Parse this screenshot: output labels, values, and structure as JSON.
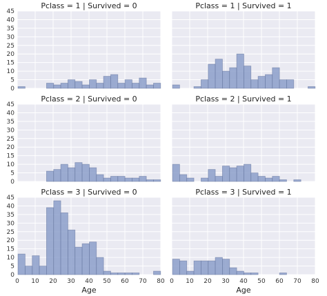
{
  "colors": {
    "panel_background": "#eaeaf2",
    "bar_fill": "#8c9fca",
    "grid": "#ffffff"
  },
  "chart_data": {
    "type": "bar",
    "layout": "facet-grid-3x2",
    "grid": true,
    "xlabel": "Age",
    "ylim": [
      0,
      45
    ],
    "xlim": [
      0,
      80
    ],
    "yticks": [
      "0",
      "5",
      "10",
      "15",
      "20",
      "25",
      "30",
      "35",
      "40",
      "45"
    ],
    "xticks": [
      "0",
      "10",
      "20",
      "30",
      "40",
      "50",
      "60",
      "70",
      "80"
    ],
    "bin_edges": [
      0.42,
      4.38,
      8.36,
      12.33,
      16.31,
      20.29,
      24.26,
      28.24,
      32.21,
      36.19,
      40.17,
      44.14,
      48.12,
      52.09,
      56.07,
      60.05,
      64.02,
      68.0,
      71.98,
      75.95,
      79.93
    ],
    "panels": [
      {
        "title": "Pclass = 1 | Survived = 0",
        "values": [
          1,
          0,
          0,
          0,
          3,
          2,
          3,
          5,
          4,
          2,
          5,
          3,
          7,
          8,
          3,
          5,
          3,
          6,
          2,
          3
        ]
      },
      {
        "title": "Pclass = 1 | Survived = 1",
        "values": [
          2,
          0,
          0,
          1,
          5,
          14,
          17,
          10,
          12,
          20,
          13,
          5,
          7,
          8,
          12,
          5,
          5,
          0,
          0,
          1
        ]
      },
      {
        "title": "Pclass = 2 | Survived = 0",
        "values": [
          0,
          0,
          0,
          0,
          6,
          7,
          10,
          8,
          11,
          10,
          8,
          4,
          2,
          3,
          3,
          2,
          2,
          3,
          1,
          1
        ]
      },
      {
        "title": "Pclass = 2 | Survived = 1",
        "values": [
          10,
          4,
          2,
          0,
          2,
          7,
          3,
          9,
          8,
          9,
          10,
          5,
          3,
          2,
          3,
          1,
          0,
          1,
          0,
          0
        ]
      },
      {
        "title": "Pclass = 3 | Survived = 0",
        "values": [
          12,
          5,
          11,
          5,
          39,
          43,
          36,
          26,
          16,
          18,
          19,
          10,
          2,
          1,
          1,
          1,
          1,
          0,
          0,
          2
        ]
      },
      {
        "title": "Pclass = 3 | Survived = 1",
        "values": [
          9,
          8,
          2,
          8,
          8,
          8,
          10,
          9,
          4,
          2,
          1,
          1,
          0,
          0,
          0,
          1,
          0,
          0,
          0,
          0
        ]
      }
    ]
  }
}
